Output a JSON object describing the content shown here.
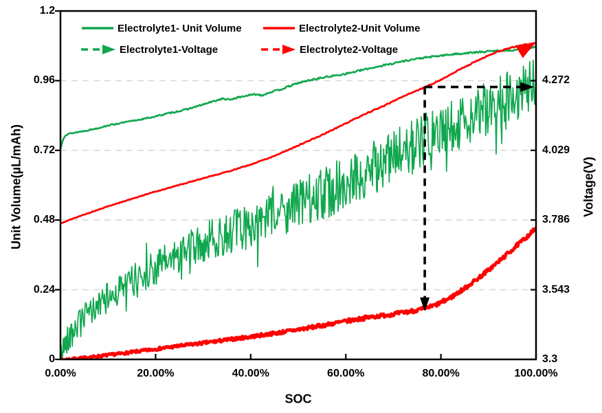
{
  "legend": {
    "items": [
      {
        "label": "Electrolyte1- Unit Volume",
        "color": "#10A74E",
        "marker": "solid-line"
      },
      {
        "label": "Electrolyte2-Unit Volume",
        "color": "#FF0000",
        "marker": "solid-line"
      },
      {
        "label": "Electrolyte1-Voltage",
        "color": "#10A74E",
        "marker": "dashed-arrow"
      },
      {
        "label": "Electrolyte2-Voltage",
        "color": "#FF0000",
        "marker": "dashed-arrow"
      }
    ]
  },
  "chart_data": {
    "type": "line",
    "title": "",
    "xlabel": "SOC",
    "ylabel_left": "Unit Volume(µL/mAh)",
    "ylabel_right": "Voltage(V)",
    "colors": {
      "green": "#10A74E",
      "red": "#FF0000",
      "annotation": "#000000",
      "grid": "#D9D9D9",
      "axis": "#000000",
      "background": "#FFFFFF"
    },
    "x_axis": {
      "range": [
        0,
        100
      ],
      "tick_values": [
        0,
        20,
        40,
        60,
        80,
        100
      ],
      "tick_labels": [
        "0.00%",
        "20.00%",
        "40.00%",
        "60.00%",
        "80.00%",
        "100.00%"
      ]
    },
    "y_axis_left": {
      "range": [
        0,
        1.2
      ],
      "tick_values": [
        0,
        0.24,
        0.48,
        0.72,
        0.96,
        1.2
      ],
      "tick_labels": [
        "0",
        "0.24",
        "0.48",
        "0.72",
        "0.96",
        "1.2"
      ]
    },
    "y_axis_right": {
      "range": [
        3.3,
        4.515
      ],
      "tick_values": [
        3.3,
        3.543,
        3.786,
        4.029,
        4.272
      ],
      "tick_labels": [
        "3.3",
        "3.543",
        "3.786",
        "4.029",
        "4.272"
      ]
    },
    "grid": {
      "horizontal_at": [
        0.24,
        0.48,
        0.72,
        0.96
      ],
      "style": "dashed"
    },
    "series": [
      {
        "name": "Electrolyte1-Voltage",
        "axis": "right",
        "color": "#10A74E",
        "stroke_width": 1.7,
        "samples": 680,
        "seed": 42,
        "noise_amplitude": [
          0.045,
          0.095
        ],
        "spikes": true,
        "clamp_min": 3.301,
        "points": [
          [
            0,
            3.31
          ],
          [
            1,
            3.36
          ],
          [
            3,
            3.41
          ],
          [
            5,
            3.445
          ],
          [
            8,
            3.49
          ],
          [
            12,
            3.54
          ],
          [
            16,
            3.585
          ],
          [
            20,
            3.62
          ],
          [
            25,
            3.665
          ],
          [
            30,
            3.705
          ],
          [
            35,
            3.742
          ],
          [
            40,
            3.762
          ],
          [
            45,
            3.8
          ],
          [
            50,
            3.84
          ],
          [
            55,
            3.876
          ],
          [
            60,
            3.916
          ],
          [
            65,
            3.96
          ],
          [
            70,
            4.005
          ],
          [
            75,
            4.05
          ],
          [
            80,
            4.09
          ],
          [
            85,
            4.135
          ],
          [
            90,
            4.175
          ],
          [
            95,
            4.215
          ],
          [
            100,
            4.255
          ]
        ]
      },
      {
        "name": "Electrolyte2-Voltage",
        "axis": "right",
        "color": "#FF0000",
        "stroke_width": 4.5,
        "samples": 680,
        "seed": 7,
        "noise_amplitude": [
          0.004,
          0.007
        ],
        "spikes": false,
        "points": [
          [
            0,
            3.298
          ],
          [
            5,
            3.305
          ],
          [
            10,
            3.315
          ],
          [
            15,
            3.325
          ],
          [
            20,
            3.336
          ],
          [
            25,
            3.347
          ],
          [
            30,
            3.357
          ],
          [
            35,
            3.368
          ],
          [
            40,
            3.379
          ],
          [
            45,
            3.391
          ],
          [
            50,
            3.404
          ],
          [
            55,
            3.418
          ],
          [
            60,
            3.433
          ],
          [
            65,
            3.447
          ],
          [
            70,
            3.458
          ],
          [
            73,
            3.466
          ],
          [
            76,
            3.475
          ],
          [
            79,
            3.49
          ],
          [
            82,
            3.515
          ],
          [
            85,
            3.548
          ],
          [
            88,
            3.585
          ],
          [
            91,
            3.625
          ],
          [
            94,
            3.668
          ],
          [
            97,
            3.712
          ],
          [
            100,
            3.757
          ]
        ]
      },
      {
        "name": "Electrolyte1- Unit Volume",
        "axis": "left",
        "color": "#10A74E",
        "stroke_width": 2.6,
        "samples": 500,
        "seed": 13,
        "noise_amplitude": [
          0.002,
          0.003
        ],
        "spikes": false,
        "points": [
          [
            0,
            0.725
          ],
          [
            0.5,
            0.758
          ],
          [
            1,
            0.772
          ],
          [
            2,
            0.778
          ],
          [
            4,
            0.784
          ],
          [
            6,
            0.79
          ],
          [
            8,
            0.797
          ],
          [
            10,
            0.806
          ],
          [
            12,
            0.812
          ],
          [
            14,
            0.818
          ],
          [
            16,
            0.824
          ],
          [
            18,
            0.83
          ],
          [
            20,
            0.837
          ],
          [
            22,
            0.845
          ],
          [
            24,
            0.852
          ],
          [
            26,
            0.859
          ],
          [
            28,
            0.868
          ],
          [
            30,
            0.878
          ],
          [
            32,
            0.888
          ],
          [
            34,
            0.898
          ],
          [
            35.5,
            0.894
          ],
          [
            37,
            0.901
          ],
          [
            39,
            0.908
          ],
          [
            41,
            0.913
          ],
          [
            42.5,
            0.91
          ],
          [
            44,
            0.92
          ],
          [
            46,
            0.928
          ],
          [
            48,
            0.94
          ],
          [
            50,
            0.952
          ],
          [
            52,
            0.96
          ],
          [
            54,
            0.967
          ],
          [
            56,
            0.973
          ],
          [
            58,
            0.978
          ],
          [
            60,
            0.984
          ],
          [
            62,
            0.991
          ],
          [
            64,
            0.999
          ],
          [
            66,
            1.006
          ],
          [
            68,
            1.013
          ],
          [
            70,
            1.02
          ],
          [
            72,
            1.027
          ],
          [
            74,
            1.033
          ],
          [
            76,
            1.038
          ],
          [
            78,
            1.042
          ],
          [
            80,
            1.046
          ],
          [
            82,
            1.05
          ],
          [
            84,
            1.053
          ],
          [
            86,
            1.056
          ],
          [
            88,
            1.058
          ],
          [
            90,
            1.061
          ],
          [
            92,
            1.063
          ],
          [
            94,
            1.064
          ],
          [
            96,
            1.067
          ],
          [
            98,
            1.07
          ],
          [
            100,
            1.077
          ]
        ]
      },
      {
        "name": "Electrolyte2-Unit Volume",
        "axis": "left",
        "color": "#FF0000",
        "stroke_width": 2.8,
        "samples": 400,
        "seed": 5,
        "noise_amplitude": [
          0.001,
          0.0018
        ],
        "spikes": false,
        "points": [
          [
            0,
            0.468
          ],
          [
            2,
            0.481
          ],
          [
            5,
            0.499
          ],
          [
            10,
            0.527
          ],
          [
            15,
            0.553
          ],
          [
            20,
            0.578
          ],
          [
            25,
            0.601
          ],
          [
            30,
            0.624
          ],
          [
            35,
            0.646
          ],
          [
            40,
            0.671
          ],
          [
            45,
            0.701
          ],
          [
            50,
            0.737
          ],
          [
            55,
            0.773
          ],
          [
            60,
            0.813
          ],
          [
            64,
            0.845
          ],
          [
            68,
            0.873
          ],
          [
            72,
            0.906
          ],
          [
            76,
            0.933
          ],
          [
            80,
            0.963
          ],
          [
            84,
            0.999
          ],
          [
            88,
            1.032
          ],
          [
            92,
            1.06
          ],
          [
            95,
            1.075
          ],
          [
            98,
            1.085
          ],
          [
            100,
            1.09
          ]
        ]
      }
    ],
    "annotations": {
      "dashed_arrow": {
        "soc": 76.6,
        "voltage_level": 4.25,
        "drop_to_voltage": 3.468,
        "right_end_soc": 99.6,
        "color": "#000000"
      },
      "end_arrow": {
        "series": "Electrolyte2-Unit Volume",
        "soc": 99.85,
        "value": 1.09,
        "angle_deg": -31,
        "color": "#FF0000"
      }
    }
  }
}
